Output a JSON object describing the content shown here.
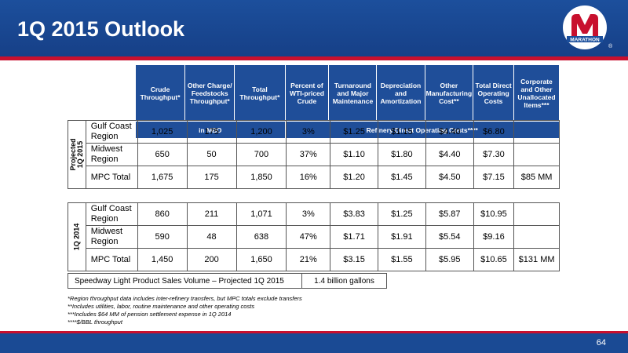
{
  "page": {
    "title": "1Q 2015 Outlook",
    "page_number": "64"
  },
  "logo": {
    "text": "MARATHON",
    "tm": "®"
  },
  "columns": {
    "crude": "Crude Throughput*",
    "other_charge": "Other Charge/ Feedstocks Throughput*",
    "total_throughput": "Total Throughput*",
    "percent_wti": "Percent of WTI-priced Crude",
    "turnaround": "Turnaround and Major Maintenance",
    "depreciation": "Depreciation and Amortization",
    "other_mfg": "Other Manufacturing Cost**",
    "total_direct": "Total Direct Operating Costs",
    "corporate": "Corporate and Other Unallocated Items***"
  },
  "units": {
    "mbd": "in MBD",
    "refinery": "Refinery Direct Operating Costs****"
  },
  "projected": {
    "label_line1": "Projected",
    "label_line2": "1Q 2015",
    "rows": [
      {
        "region": "Gulf Coast Region",
        "crude": "1,025",
        "other": "175",
        "total": "1,200",
        "pct": "3%",
        "turnaround": "$1.25",
        "dep": "$1.15",
        "mfg": "$4.40",
        "direct": "$6.80",
        "corp": ""
      },
      {
        "region": "Midwest Region",
        "crude": "650",
        "other": "50",
        "total": "700",
        "pct": "37%",
        "turnaround": "$1.10",
        "dep": "$1.80",
        "mfg": "$4.40",
        "direct": "$7.30",
        "corp": ""
      },
      {
        "region": "MPC Total",
        "crude": "1,675",
        "other": "175",
        "total": "1,850",
        "pct": "16%",
        "turnaround": "$1.20",
        "dep": "$1.45",
        "mfg": "$4.50",
        "direct": "$7.15",
        "corp": "$85 MM"
      }
    ]
  },
  "actual": {
    "label": "1Q 2014",
    "rows": [
      {
        "region": "Gulf Coast Region",
        "crude": "860",
        "other": "211",
        "total": "1,071",
        "pct": "3%",
        "turnaround": "$3.83",
        "dep": "$1.25",
        "mfg": "$5.87",
        "direct": "$10.95",
        "corp": ""
      },
      {
        "region": "Midwest Region",
        "crude": "590",
        "other": "48",
        "total": "638",
        "pct": "47%",
        "turnaround": "$1.71",
        "dep": "$1.91",
        "mfg": "$5.54",
        "direct": "$9.16",
        "corp": ""
      },
      {
        "region": "MPC Total",
        "crude": "1,450",
        "other": "200",
        "total": "1,650",
        "pct": "21%",
        "turnaround": "$3.15",
        "dep": "$1.55",
        "mfg": "$5.95",
        "direct": "$10.65",
        "corp": "$131 MM"
      }
    ]
  },
  "speedway": {
    "label": "Speedway Light Product Sales Volume – Projected 1Q 2015",
    "value": "1.4 billion gallons"
  },
  "footnotes": [
    "*Region throughput data includes inter-refinery transfers, but MPC totals exclude transfers",
    "**Includes utilities, labor, routine maintenance and other operating costs",
    "***Includes $64 MM of pension settlement expense in 1Q 2014",
    "****$/BBL throughput"
  ],
  "colors": {
    "header_blue": "#1c4f9c",
    "accent_red": "#c8102e"
  }
}
